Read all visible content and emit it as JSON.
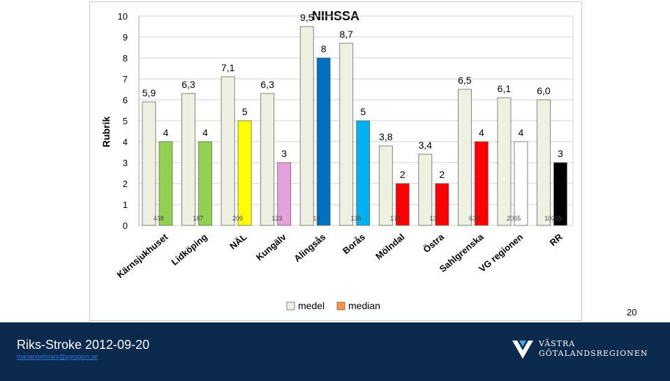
{
  "chart_data": {
    "type": "bar",
    "title": "NIHSSA",
    "ylabel": "Rubrik",
    "ylim": [
      0,
      10
    ],
    "yticks": [
      0,
      1,
      2,
      3,
      4,
      5,
      6,
      7,
      8,
      9,
      10
    ],
    "categories": [
      "Kärnsjukhuset",
      "Lidköping",
      "NÄL",
      "Kungälv",
      "Alingsås",
      "Borås",
      "Mölndal",
      "Östra",
      "Sahlgrenska",
      "VG regionen",
      "RR"
    ],
    "counts": [
      "438",
      "187",
      "209",
      "123",
      "19",
      "135",
      "178",
      "137",
      "639",
      "2065",
      "10205"
    ],
    "series": [
      {
        "name": "medel",
        "values": [
          5.9,
          6.3,
          7.1,
          6.3,
          9.5,
          8.7,
          3.8,
          3.4,
          6.5,
          6.1,
          6.0
        ],
        "labels": [
          "5,9",
          "6,3",
          "7,1",
          "6,3",
          "9,5",
          "8,7",
          "3,8",
          "3,4",
          "6,5",
          "6,1",
          "6,0"
        ],
        "color": "#eef1e2"
      },
      {
        "name": "median",
        "values": [
          4,
          4,
          5,
          3,
          8,
          5,
          2,
          2,
          4,
          4,
          3
        ],
        "labels": [
          "4",
          "4",
          "5",
          "3",
          "8",
          "5",
          "2",
          "2",
          "4",
          "4",
          "3"
        ],
        "colors": [
          "#92d050",
          "#92d050",
          "#ffff00",
          "#e6a0dc",
          "#0070c0",
          "#00b0f0",
          "#ff0000",
          "#ff0000",
          "#ff0000",
          "#ffffff",
          "#000000"
        ],
        "legend_color": "#f79646"
      }
    ],
    "legend_position": "bottom"
  },
  "page_number": "20",
  "footer": {
    "title": "Riks-Stroke 2012-09-20",
    "email": "marianneforars@vgregion.se",
    "logo_line1": "VÄSTRA",
    "logo_line2": "GÖTALANDSREGIONEN"
  },
  "logo_icon": "vgr-logo-icon"
}
